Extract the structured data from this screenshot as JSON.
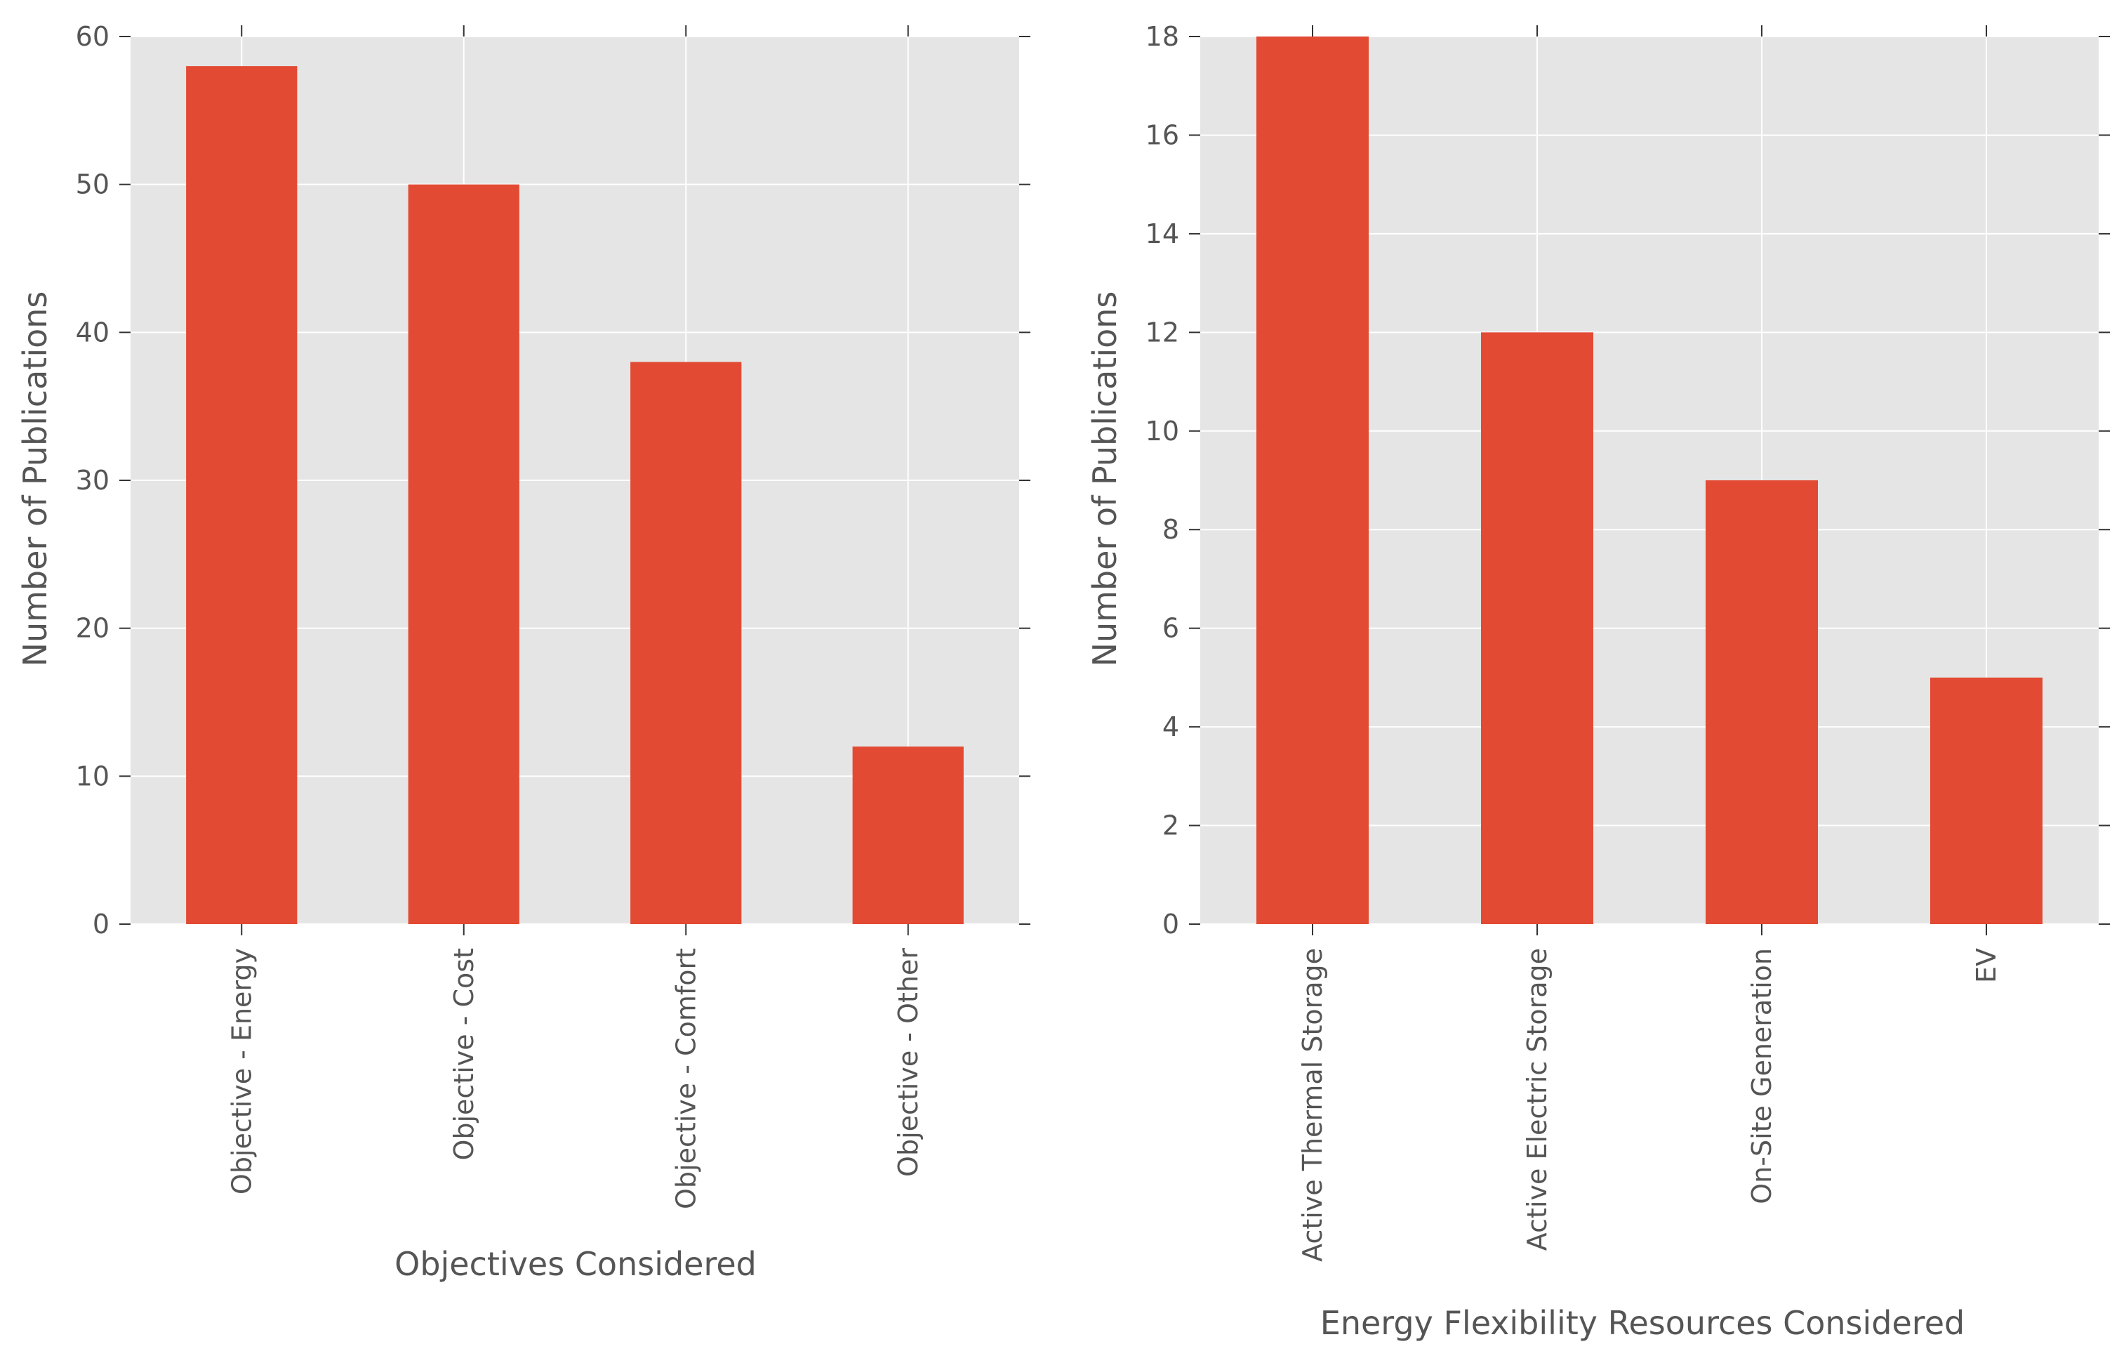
{
  "chart_data": [
    {
      "type": "bar",
      "categories": [
        "Objective - Energy",
        "Objective - Cost",
        "Objective - Comfort",
        "Objective - Other"
      ],
      "values": [
        58,
        50,
        38,
        12
      ],
      "xlabel": "Objectives Considered",
      "ylabel": "Number of Publications",
      "ylim": [
        0,
        60
      ],
      "yticks": [
        0,
        10,
        20,
        30,
        40,
        50,
        60
      ],
      "grid": true,
      "bar_color": "#E24A33",
      "background": "#E5E5E5"
    },
    {
      "type": "bar",
      "categories": [
        "Active Thermal Storage",
        "Active Electric Storage",
        "On-Site Generation",
        "EV"
      ],
      "values": [
        18,
        12,
        9,
        5
      ],
      "xlabel": "Energy Flexibility Resources Considered",
      "ylabel": "Number of Publications",
      "ylim": [
        0,
        18
      ],
      "yticks": [
        0,
        2,
        4,
        6,
        8,
        10,
        12,
        14,
        16,
        18
      ],
      "grid": true,
      "bar_color": "#E24A33",
      "background": "#E5E5E5"
    }
  ]
}
